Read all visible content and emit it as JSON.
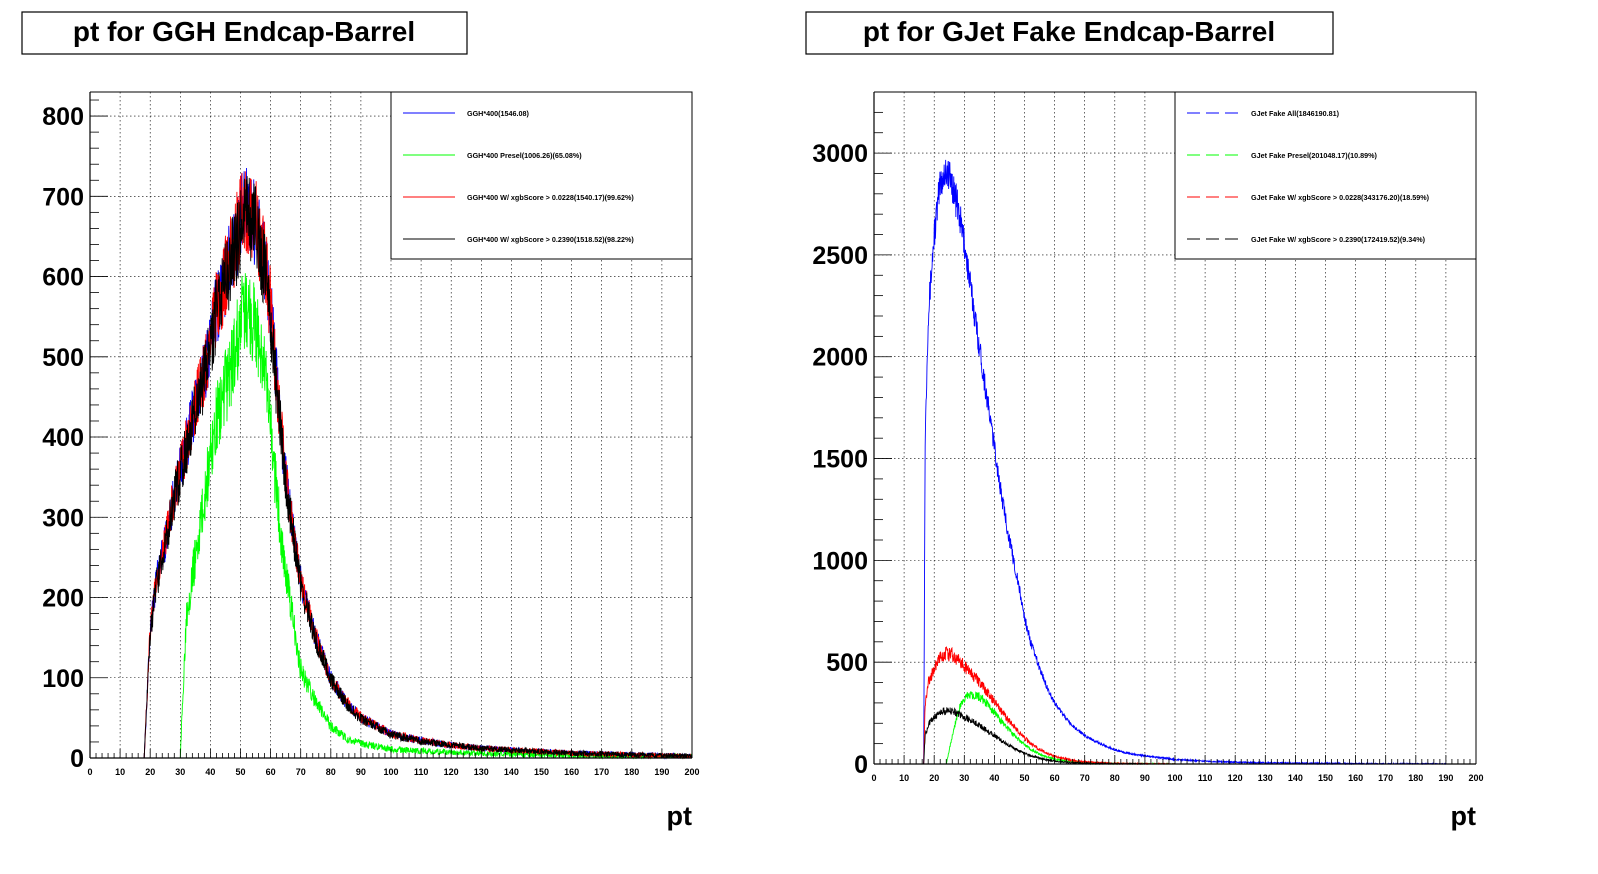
{
  "chart_data": [
    {
      "type": "line",
      "title": "pt for GGH Endcap-Barrel",
      "xlabel": "pt",
      "ylabel": "",
      "xlim": [
        0,
        200
      ],
      "ylim": [
        0,
        830
      ],
      "grid": true,
      "x_ticks": [
        "0",
        "10",
        "20",
        "30",
        "40",
        "50",
        "60",
        "70",
        "80",
        "90",
        "100",
        "110",
        "120",
        "130",
        "140",
        "150",
        "160",
        "170",
        "180",
        "190",
        "200"
      ],
      "y_ticks": [
        "0",
        "100",
        "200",
        "300",
        "400",
        "500",
        "600",
        "700",
        "800"
      ],
      "y_tick_values": [
        0,
        100,
        200,
        300,
        400,
        500,
        600,
        700,
        800
      ],
      "legend_position": "top-right",
      "legend_style": "solid",
      "x": [
        17,
        18,
        20,
        22,
        25,
        28,
        30,
        32,
        35,
        38,
        40,
        42,
        45,
        48,
        50,
        52,
        55,
        58,
        60,
        62,
        65,
        68,
        70,
        75,
        80,
        85,
        90,
        95,
        100,
        110,
        120,
        130,
        140,
        150,
        160,
        170,
        180,
        190,
        200
      ],
      "series": [
        {
          "name": "GGH*400(1546.08)",
          "color": "#0000ff",
          "noise": 0.08,
          "values": [
            0,
            0,
            160,
            220,
            270,
            330,
            360,
            390,
            440,
            480,
            520,
            560,
            600,
            640,
            670,
            680,
            670,
            620,
            560,
            470,
            350,
            270,
            220,
            150,
            100,
            70,
            50,
            40,
            30,
            22,
            16,
            12,
            10,
            8,
            6,
            5,
            4,
            3,
            2
          ]
        },
        {
          "name": "GGH*400 Presel(1006.26)(65.08%)",
          "color": "#00ff00",
          "noise": 0.1,
          "values": [
            0,
            0,
            0,
            0,
            0,
            0,
            0,
            180,
            250,
            320,
            380,
            420,
            460,
            500,
            540,
            560,
            540,
            480,
            410,
            330,
            230,
            160,
            110,
            70,
            40,
            25,
            18,
            14,
            11,
            9,
            7,
            6,
            5,
            4,
            3,
            3,
            2,
            2,
            2
          ]
        },
        {
          "name": "GGH*400 W/ xgbScore > 0.0228(1540.17)(99.62%)",
          "color": "#ff0000",
          "noise": 0.08,
          "values": [
            0,
            0,
            160,
            220,
            270,
            330,
            360,
            390,
            440,
            480,
            520,
            560,
            600,
            640,
            670,
            680,
            670,
            620,
            560,
            470,
            350,
            270,
            220,
            150,
            100,
            70,
            50,
            40,
            30,
            22,
            16,
            12,
            10,
            8,
            6,
            5,
            4,
            3,
            2
          ]
        },
        {
          "name": "GGH*400 W/ xgbScore > 0.2390(1518.52)(98.22%)",
          "color": "#000000",
          "noise": 0.08,
          "values": [
            0,
            0,
            155,
            215,
            265,
            325,
            355,
            385,
            435,
            475,
            515,
            555,
            595,
            630,
            660,
            670,
            660,
            610,
            550,
            460,
            345,
            265,
            215,
            148,
            98,
            68,
            49,
            39,
            29,
            21,
            16,
            12,
            10,
            8,
            6,
            5,
            4,
            3,
            2
          ]
        }
      ]
    },
    {
      "type": "line",
      "title": "pt for GJet Fake Endcap-Barrel",
      "xlabel": "pt",
      "ylabel": "",
      "xlim": [
        0,
        200
      ],
      "ylim": [
        0,
        3300
      ],
      "grid": true,
      "x_ticks": [
        "0",
        "10",
        "20",
        "30",
        "40",
        "50",
        "60",
        "70",
        "80",
        "90",
        "100",
        "110",
        "120",
        "130",
        "140",
        "150",
        "160",
        "170",
        "180",
        "190",
        "200"
      ],
      "y_ticks": [
        "0",
        "500",
        "1000",
        "1500",
        "2000",
        "2500",
        "3000"
      ],
      "y_tick_values": [
        0,
        500,
        1000,
        1500,
        2000,
        2500,
        3000
      ],
      "legend_position": "top-right",
      "legend_style": "dashed",
      "x": [
        16.5,
        17,
        18,
        20,
        22,
        24,
        26,
        28,
        30,
        32,
        35,
        38,
        40,
        42,
        45,
        48,
        50,
        52,
        55,
        58,
        60,
        65,
        70,
        75,
        80,
        85,
        90,
        100,
        110,
        120,
        130,
        140,
        150,
        160,
        170,
        180,
        190,
        200
      ],
      "series": [
        {
          "name": "GJet Fake All(1846190.81)",
          "color": "#0000ff",
          "noise": 0.03,
          "values": [
            0,
            1600,
            2200,
            2600,
            2850,
            2920,
            2850,
            2720,
            2560,
            2350,
            2050,
            1750,
            1560,
            1350,
            1100,
            880,
            720,
            600,
            470,
            360,
            300,
            200,
            140,
            100,
            70,
            50,
            40,
            22,
            14,
            9,
            6,
            4,
            3,
            2,
            1,
            1,
            0,
            0
          ]
        },
        {
          "name": "GJet Fake Presel(201048.17)(10.89%)",
          "color": "#00ff00",
          "noise": 0.06,
          "values": [
            0,
            0,
            0,
            0,
            0,
            0,
            140,
            260,
            320,
            345,
            330,
            290,
            255,
            215,
            165,
            120,
            95,
            72,
            48,
            32,
            24,
            12,
            6,
            3,
            2,
            1,
            1,
            0,
            0,
            0,
            0,
            0,
            0,
            0,
            0,
            0,
            0,
            0
          ]
        },
        {
          "name": "GJet Fake W/ xgbScore > 0.0228(343176.20)(18.59%)",
          "color": "#ff0000",
          "noise": 0.06,
          "values": [
            0,
            300,
            400,
            470,
            520,
            540,
            535,
            510,
            480,
            450,
            400,
            345,
            305,
            265,
            210,
            160,
            130,
            100,
            72,
            50,
            38,
            20,
            11,
            6,
            3,
            2,
            1,
            0,
            0,
            0,
            0,
            0,
            0,
            0,
            0,
            0,
            0,
            0
          ]
        },
        {
          "name": "GJet Fake W/ xgbScore > 0.2390(172419.52)(9.34%)",
          "color": "#000000",
          "noise": 0.06,
          "values": [
            0,
            140,
            190,
            230,
            255,
            262,
            258,
            248,
            232,
            215,
            190,
            160,
            140,
            118,
            90,
            66,
            52,
            40,
            28,
            19,
            14,
            7,
            4,
            2,
            1,
            1,
            0,
            0,
            0,
            0,
            0,
            0,
            0,
            0,
            0,
            0,
            0,
            0
          ]
        }
      ]
    }
  ]
}
